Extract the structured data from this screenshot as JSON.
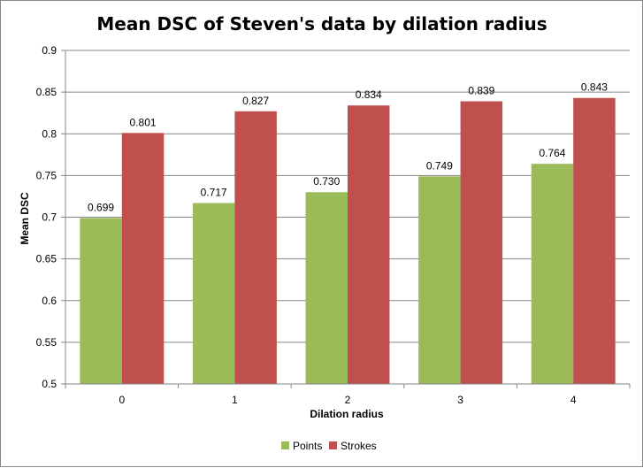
{
  "chart_data": {
    "type": "bar",
    "title": "Mean DSC of Steven's data by dilation radius",
    "xlabel": "Dilation  radius",
    "ylabel": "Mean DSC",
    "categories": [
      "0",
      "1",
      "2",
      "3",
      "4"
    ],
    "series": [
      {
        "name": "Points",
        "color": "#9BBB59",
        "values": [
          0.699,
          0.717,
          0.73,
          0.749,
          0.764
        ],
        "labels": [
          "0.699",
          "0.717",
          "0.730",
          "0.749",
          "0.764"
        ]
      },
      {
        "name": "Strokes",
        "color": "#C0504D",
        "values": [
          0.801,
          0.827,
          0.834,
          0.839,
          0.843
        ],
        "labels": [
          "0.801",
          "0.827",
          "0.834",
          "0.839",
          "0.843"
        ]
      }
    ],
    "ylim": [
      0.5,
      0.9
    ],
    "yticks": [
      "0.5",
      "0.55",
      "0.6",
      "0.65",
      "0.7",
      "0.75",
      "0.8",
      "0.85",
      "0.9"
    ],
    "grid": true,
    "legend": "bottom"
  }
}
